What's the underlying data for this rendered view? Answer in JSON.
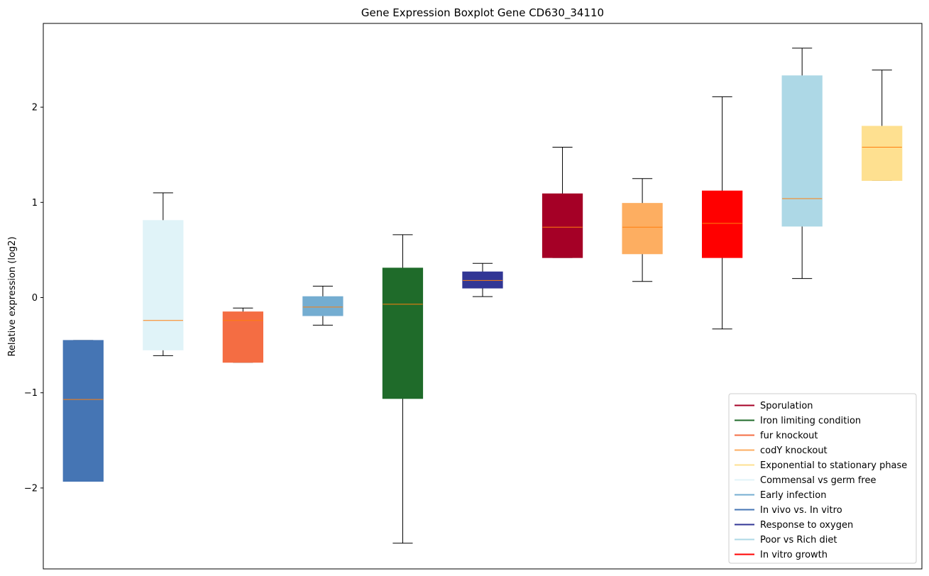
{
  "chart_data": {
    "type": "boxplot",
    "title": "Gene Expression Boxplot Gene CD630_34110",
    "xlabel": "",
    "ylabel": "Relative expression (log2)",
    "ylim": [
      -2.85,
      2.88
    ],
    "yticks": [
      -2,
      -1,
      0,
      1,
      2
    ],
    "ytick_labels": [
      "−2",
      "−1",
      "0",
      "1",
      "2"
    ],
    "grid": false,
    "legend_position": "bottom-right",
    "median_color": "#ff7f0e",
    "boxes": [
      {
        "name": "In vivo vs. In vitro",
        "color": "#4575b4",
        "whisker_low": -1.93,
        "q1": -1.93,
        "median": -1.07,
        "q3": -0.45,
        "whisker_high": -0.45
      },
      {
        "name": "Commensal vs germ free",
        "color": "#e0f3f8",
        "whisker_low": -0.61,
        "q1": -0.55,
        "median": -0.24,
        "q3": 0.81,
        "whisker_high": 1.1
      },
      {
        "name": "fur knockout",
        "color": "#f46d43",
        "whisker_low": -0.68,
        "q1": -0.68,
        "median": -0.24,
        "q3": -0.15,
        "whisker_high": -0.11
      },
      {
        "name": "Early infection",
        "color": "#74add1",
        "whisker_low": -0.29,
        "q1": -0.19,
        "median": -0.1,
        "q3": 0.01,
        "whisker_high": 0.12
      },
      {
        "name": "Iron limiting condition",
        "color": "#1f6b2a",
        "whisker_low": -2.58,
        "q1": -1.06,
        "median": -0.07,
        "q3": 0.31,
        "whisker_high": 0.66
      },
      {
        "name": "Response to oxygen",
        "color": "#313695",
        "whisker_low": 0.01,
        "q1": 0.1,
        "median": 0.18,
        "q3": 0.27,
        "whisker_high": 0.36
      },
      {
        "name": "Sporulation",
        "color": "#a50026",
        "whisker_low": 0.42,
        "q1": 0.42,
        "median": 0.74,
        "q3": 1.09,
        "whisker_high": 1.58
      },
      {
        "name": "codY knockout",
        "color": "#fdae61",
        "whisker_low": 0.17,
        "q1": 0.46,
        "median": 0.74,
        "q3": 0.99,
        "whisker_high": 1.25
      },
      {
        "name": "In vitro growth",
        "color": "#ff0000",
        "whisker_low": -0.33,
        "q1": 0.42,
        "median": 0.78,
        "q3": 1.12,
        "whisker_high": 2.11
      },
      {
        "name": "Poor vs Rich diet",
        "color": "#add8e6",
        "whisker_low": 0.2,
        "q1": 0.75,
        "median": 1.04,
        "q3": 2.33,
        "whisker_high": 2.62
      },
      {
        "name": "Exponential to stationary phase",
        "color": "#fee090",
        "whisker_low": 1.23,
        "q1": 1.23,
        "median": 1.58,
        "q3": 1.8,
        "whisker_high": 2.39
      }
    ],
    "legend": [
      {
        "label": "Sporulation",
        "color": "#a50026"
      },
      {
        "label": "Iron limiting condition",
        "color": "#1f6b2a"
      },
      {
        "label": "fur knockout",
        "color": "#f46d43"
      },
      {
        "label": "codY knockout",
        "color": "#fdae61"
      },
      {
        "label": "Exponential to stationary phase",
        "color": "#fee090"
      },
      {
        "label": "Commensal vs germ free",
        "color": "#e0f3f8"
      },
      {
        "label": "Early infection",
        "color": "#74add1"
      },
      {
        "label": "In vivo vs. In vitro",
        "color": "#4575b4"
      },
      {
        "label": "Response to oxygen",
        "color": "#313695"
      },
      {
        "label": "Poor vs Rich diet",
        "color": "#add8e6"
      },
      {
        "label": "In vitro growth",
        "color": "#ff0000"
      }
    ]
  }
}
